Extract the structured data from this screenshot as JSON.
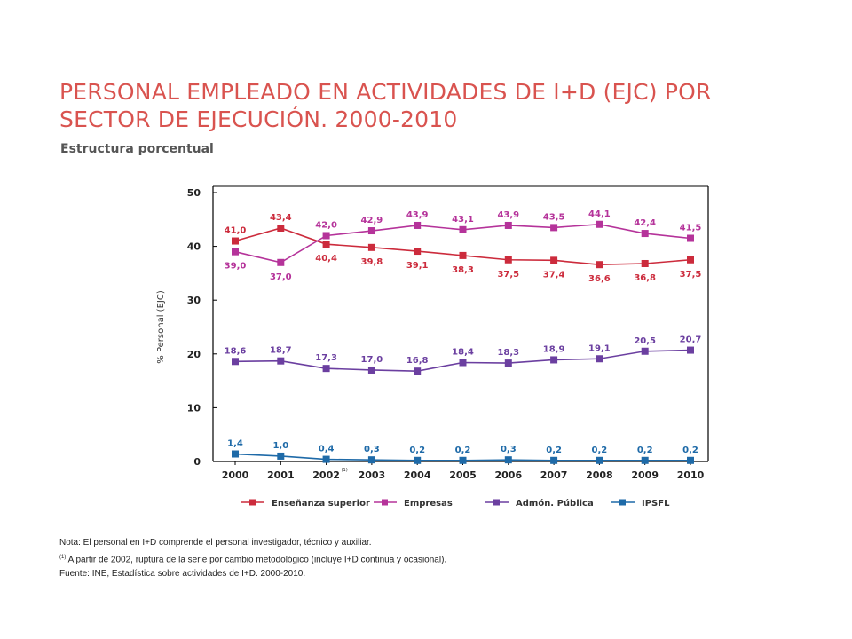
{
  "title": "PERSONAL EMPLEADO EN ACTIVIDADES DE I+D (EJC) POR SECTOR DE EJECUCIÓN. 2000-2010",
  "subtitle": "Estructura porcentual",
  "notes": {
    "line1": "Nota: El personal en I+D comprende el personal investigador, técnico y auxiliar.",
    "line2_sup": "(1)",
    "line2": " A partir de 2002, ruptura de la serie por cambio metodológico (incluye I+D continua y ocasional).",
    "line3": "Fuente: INE, Estadística sobre actividades de I+D. 2000-2010."
  },
  "chart_data": {
    "type": "line",
    "x": [
      "2000",
      "2001",
      "2002",
      "2003",
      "2004",
      "2005",
      "2006",
      "2007",
      "2008",
      "2009",
      "2010"
    ],
    "x_footnote": {
      "index": 2,
      "mark": "(1)"
    },
    "ylabel": "% Personal (EJC)",
    "ylim": [
      0,
      50
    ],
    "yticks": [
      0,
      10,
      20,
      30,
      40,
      50
    ],
    "legend_position": "bottom",
    "series": [
      {
        "name": "Enseñanza superior",
        "color": "#cc2b3c",
        "values": [
          41.0,
          43.4,
          40.4,
          39.8,
          39.1,
          38.3,
          37.5,
          37.4,
          36.6,
          36.8,
          37.5
        ],
        "labels": [
          "41,0",
          "43,4",
          "40,4",
          "39,8",
          "39,1",
          "38,3",
          "37,5",
          "37,4",
          "36,6",
          "36,8",
          "37,5"
        ]
      },
      {
        "name": "Empresas",
        "color": "#b5339a",
        "values": [
          39.0,
          37.0,
          42.0,
          42.9,
          43.9,
          43.1,
          43.9,
          43.5,
          44.1,
          42.4,
          41.5
        ],
        "labels": [
          "39,0",
          "37,0",
          "42,0",
          "42,9",
          "43,9",
          "43,1",
          "43,9",
          "43,5",
          "44,1",
          "42,4",
          "41,5"
        ]
      },
      {
        "name": "Admón. Pública",
        "color": "#6b3fa0",
        "values": [
          18.6,
          18.7,
          17.3,
          17.0,
          16.8,
          18.4,
          18.3,
          18.9,
          19.1,
          20.5,
          20.7
        ],
        "labels": [
          "18,6",
          "18,7",
          "17,3",
          "17,0",
          "16,8",
          "18,4",
          "18,3",
          "18,9",
          "19,1",
          "20,5",
          "20,7"
        ]
      },
      {
        "name": "IPSFL",
        "color": "#1e6aa8",
        "values": [
          1.4,
          1.0,
          0.4,
          0.3,
          0.2,
          0.2,
          0.3,
          0.2,
          0.2,
          0.2,
          0.2
        ],
        "labels": [
          "1,4",
          "1,0",
          "0,4",
          "0,3",
          "0,2",
          "0,2",
          "0,3",
          "0,2",
          "0,2",
          "0,2",
          "0,2"
        ]
      }
    ]
  }
}
